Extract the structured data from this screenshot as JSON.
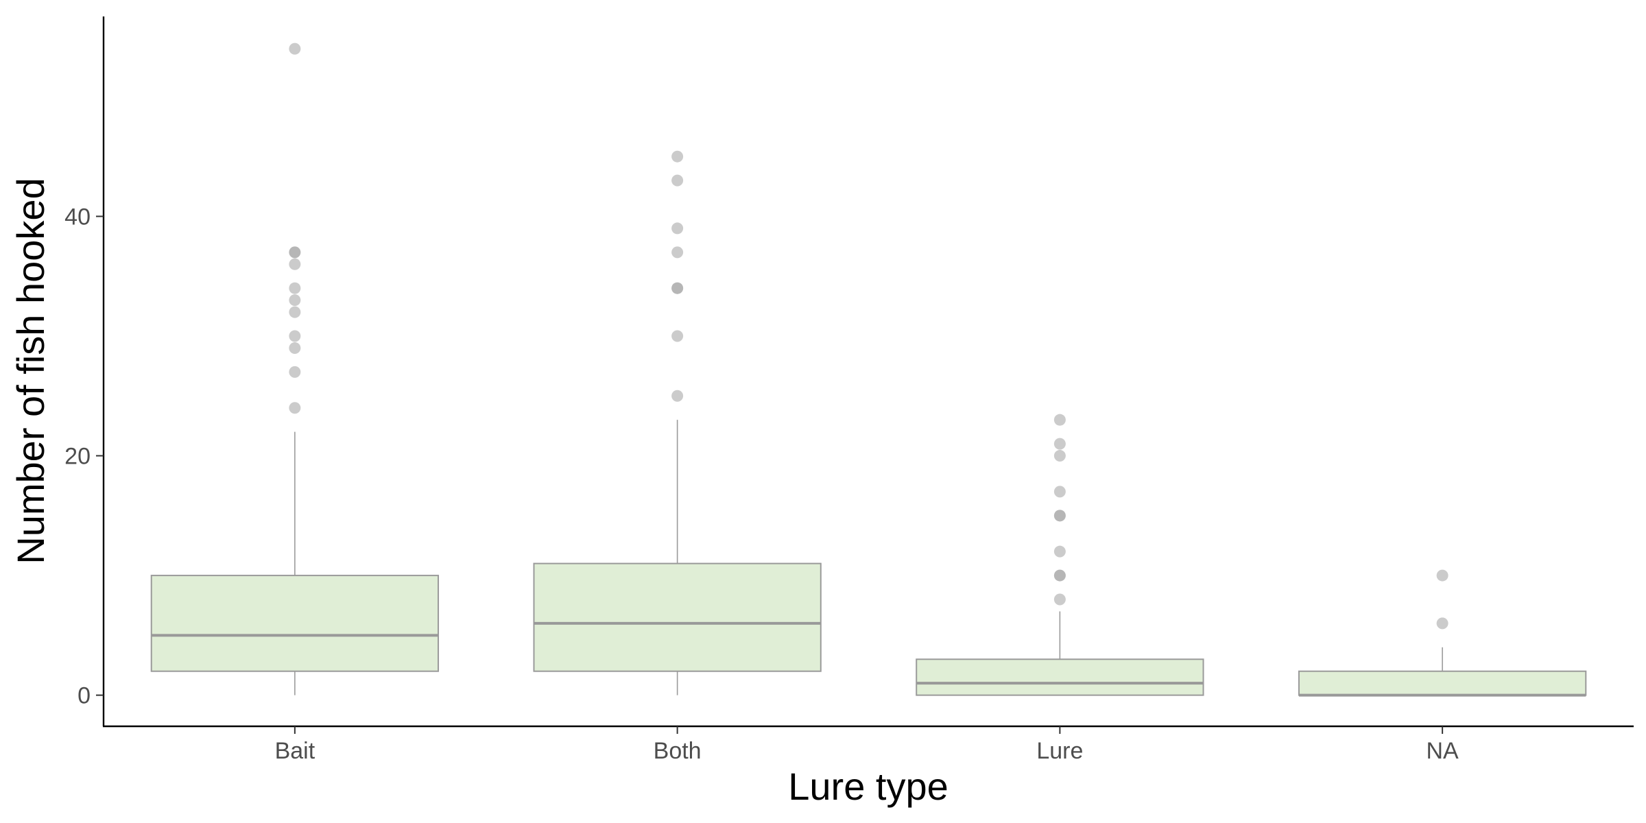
{
  "chart_data": {
    "type": "boxplot",
    "xlabel": "Lure type",
    "ylabel": "Number of fish hooked",
    "ylim": [
      -2.6,
      56.7
    ],
    "yticks": [
      0,
      20,
      40
    ],
    "grid": false,
    "legend": "none",
    "categories": [
      "Bait",
      "Both",
      "Lure",
      "NA"
    ],
    "boxes": [
      {
        "category": "Bait",
        "whisker_low": 0,
        "q1": 2,
        "median": 5,
        "q3": 10,
        "whisker_high": 22,
        "outliers": [
          24,
          27,
          29,
          30,
          32,
          33,
          34,
          36,
          37,
          37,
          54
        ]
      },
      {
        "category": "Both",
        "whisker_low": 0,
        "q1": 2,
        "median": 6,
        "q3": 11,
        "whisker_high": 23,
        "outliers": [
          25,
          30,
          34,
          34,
          37,
          39,
          43,
          45
        ]
      },
      {
        "category": "Lure",
        "whisker_low": 0,
        "q1": 0,
        "median": 1,
        "q3": 3,
        "whisker_high": 7,
        "outliers": [
          8,
          10,
          10,
          12,
          15,
          15,
          17,
          20,
          21,
          23
        ]
      },
      {
        "category": "NA",
        "whisker_low": 0,
        "q1": 0,
        "median": 0,
        "q3": 2,
        "whisker_high": 4,
        "outliers": [
          6,
          10
        ]
      }
    ],
    "colors": {
      "box_fill": "#e0eed6",
      "box_stroke": "#9a9a9a",
      "median": "#999999",
      "outlier": "#a9a9a9",
      "axis": "#000000"
    }
  }
}
